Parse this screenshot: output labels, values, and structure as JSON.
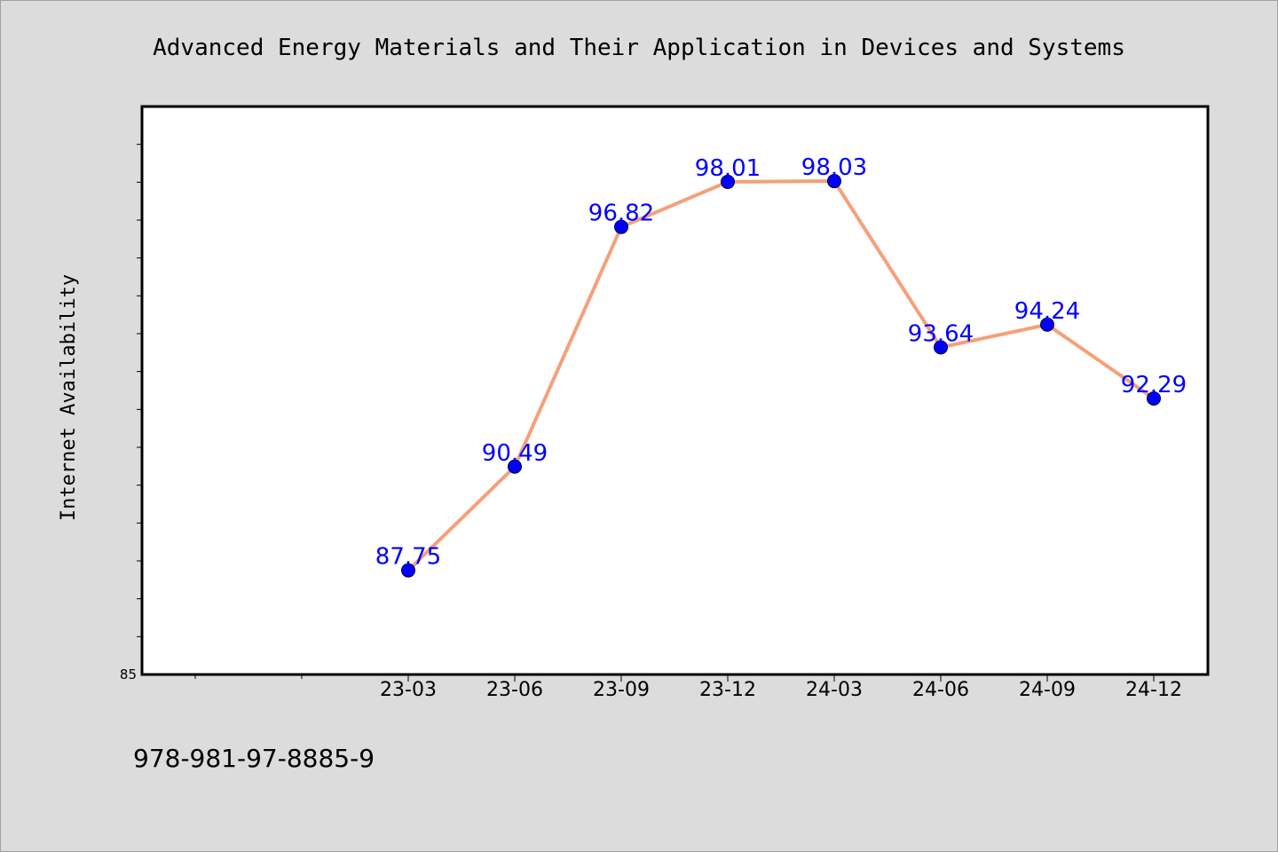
{
  "chart_data": {
    "type": "line",
    "title": "Advanced Energy Materials and Their Application in Devices and Systems",
    "ylabel": "Internet Availability",
    "xlabel": "",
    "categories": [
      "23-03",
      "23-06",
      "23-09",
      "23-12",
      "24-03",
      "24-06",
      "24-09",
      "24-12"
    ],
    "series": [
      {
        "values": [
          87.75,
          90.49,
          96.82,
          98.01,
          98.03,
          93.64,
          94.24,
          92.29
        ]
      }
    ],
    "data_labels": [
      "87.75",
      "90.49",
      "96.82",
      "98.01",
      "98.03",
      "93.64",
      "94.24",
      "92.29"
    ],
    "ylim": [
      85,
      100
    ],
    "ytick_labels": [
      "85"
    ],
    "grid": false,
    "colors": {
      "line": "#f5a07a",
      "marker": "#0000ff",
      "label": "#0000ff",
      "background": "#dcdcdc",
      "plot_bg": "#ffffff"
    }
  },
  "footer_text": "978-981-97-8885-9"
}
